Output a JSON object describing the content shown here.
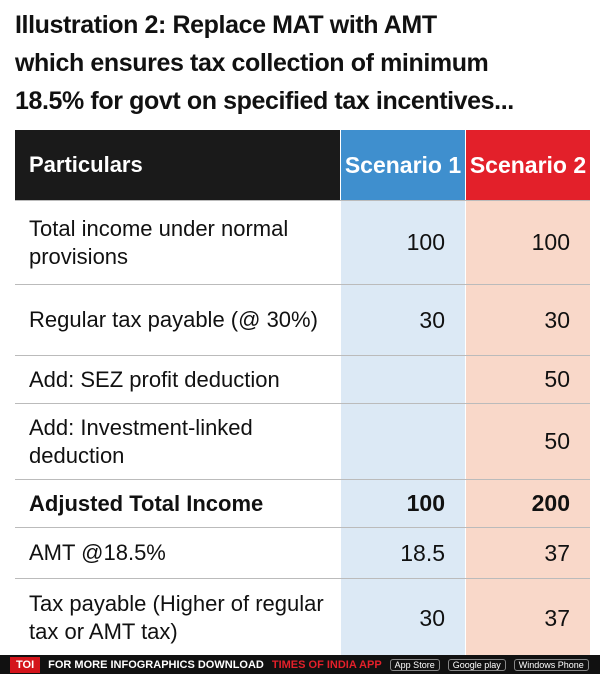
{
  "header": {
    "title_lines": [
      "Illustration 2: Replace MAT with AMT",
      "which ensures tax collection of minimum",
      "18.5% for govt on specified tax incentives..."
    ]
  },
  "table": {
    "columns": [
      "Particulars",
      "Scenario 1",
      "Scenario 2"
    ],
    "rows": [
      {
        "label": "Total income under normal provisions",
        "s1": "100",
        "s2": "100"
      },
      {
        "label": "Regular tax payable (@ 30%)",
        "s1": "30",
        "s2": "30"
      },
      {
        "label": "Add: SEZ profit deduction",
        "s2": "50"
      },
      {
        "label": "Add: Investment-linked deduction",
        "s2": "50"
      },
      {
        "label": "Adjusted Total Income",
        "s1": "100",
        "s2": "200",
        "bold": true
      },
      {
        "label": "AMT @18.5%",
        "s1": "18.5",
        "s2": "37"
      },
      {
        "label": "Tax payable (Higher of regular tax or AMT tax)",
        "s1": "30",
        "s2": "37"
      }
    ]
  },
  "footer": {
    "brand": "TOI",
    "text": "FOR MORE INFOGRAPHICS DOWNLOAD",
    "app": "TIMES OF INDIA APP",
    "badges": [
      "App Store",
      "Google play",
      "Windows Phone"
    ]
  }
}
